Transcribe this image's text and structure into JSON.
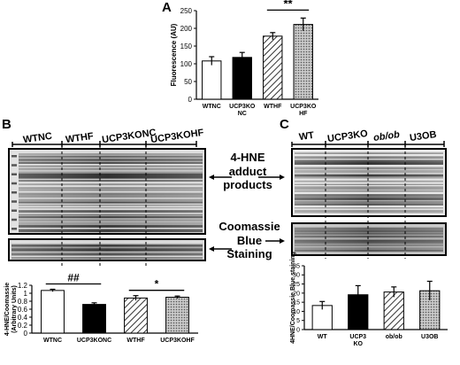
{
  "panels": {
    "a": "A",
    "b": "B",
    "c": "C"
  },
  "blot": {
    "b_lanes": [
      "WTNC",
      "WTHF",
      "UCP3KONC",
      "UCP3KOHF"
    ],
    "c_lanes": [
      "WT",
      "UCP3KO",
      "ob/ob",
      "U3OB"
    ],
    "adduct_caption": [
      "4-HNE",
      "adduct",
      "products"
    ],
    "stain_caption": [
      "Coomassie",
      "Blue",
      "Staining"
    ]
  },
  "chart_data": [
    {
      "type": "bar",
      "panel": "A",
      "categories": [
        "WTNC",
        "UCP3KO NC",
        "WTHF",
        "UCP3KO HF"
      ],
      "values": [
        108,
        118,
        178,
        211
      ],
      "errors": [
        12,
        14,
        10,
        18
      ],
      "patterns": [
        "white",
        "black",
        "hatch",
        "dots"
      ],
      "ylabel": "Fluorescence (AU)",
      "ylim": [
        0,
        250
      ],
      "yticks": [
        "0",
        "50",
        "100",
        "150",
        "200",
        "250"
      ],
      "annotations": [
        {
          "text": "**",
          "from": 2,
          "to": 3
        }
      ]
    },
    {
      "type": "bar",
      "panel": "B",
      "categories": [
        "WTNC",
        "UCP3KONC",
        "WTHF",
        "UCP3KOHF"
      ],
      "values": [
        1.07,
        0.72,
        0.88,
        0.9
      ],
      "errors": [
        0.03,
        0.04,
        0.06,
        0.03
      ],
      "patterns": [
        "white",
        "black",
        "hatch",
        "dots"
      ],
      "ylabel": "4-HNE/Coomassie (Arbitrary Units)",
      "ylim": [
        0,
        1.2
      ],
      "yticks": [
        "0",
        "0.2",
        "0.4",
        "0.6",
        "0.8",
        "1",
        "1.2"
      ],
      "annotations": [
        {
          "text": "##",
          "from": 0,
          "to": 1
        },
        {
          "text": "*",
          "from": 2,
          "to": 3
        }
      ]
    },
    {
      "type": "bar",
      "panel": "C",
      "categories": [
        "WT",
        "UCP3 KO",
        "ob/ob",
        "U3OB"
      ],
      "values": [
        13.2,
        19.1,
        20.6,
        21.3
      ],
      "errors": [
        2.2,
        5.0,
        2.8,
        5.2
      ],
      "patterns": [
        "white",
        "black",
        "hatch",
        "dots"
      ],
      "ylabel": "4HNE/Coomassie Blue staining",
      "ylim": [
        0,
        35
      ],
      "yticks": [
        "0",
        "5",
        "10",
        "15",
        "20",
        "25",
        "30",
        "35"
      ],
      "annotations": []
    }
  ]
}
